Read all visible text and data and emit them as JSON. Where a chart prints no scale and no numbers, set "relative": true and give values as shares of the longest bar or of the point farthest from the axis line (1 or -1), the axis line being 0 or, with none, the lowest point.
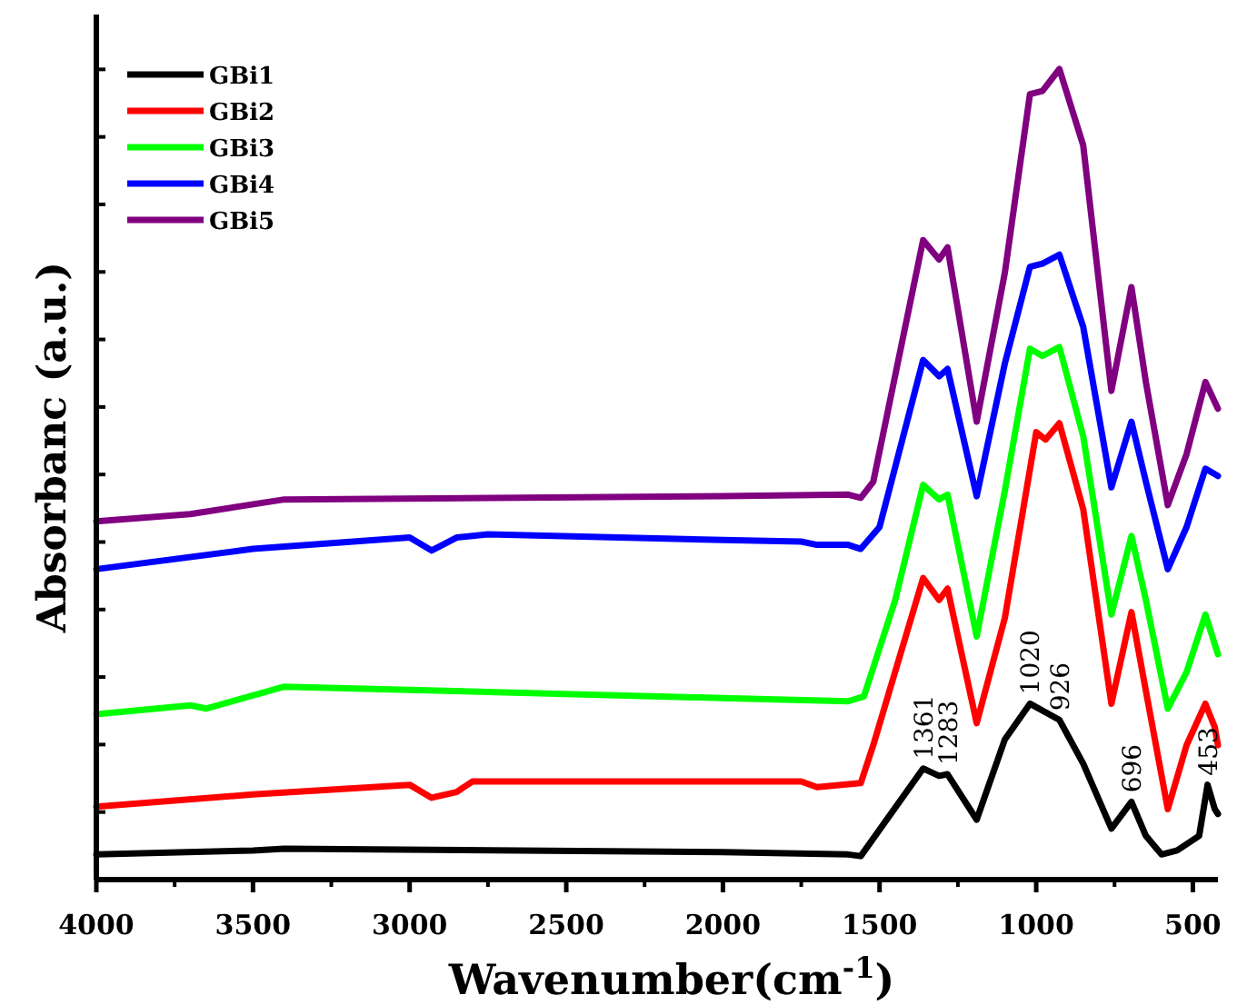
{
  "chart_data": {
    "type": "line",
    "relative": true,
    "xlabel": "Wavenumber(cm$^{-1}$)",
    "ylabel": "Absorbanc (a.u.)",
    "xlim": [
      4000,
      420
    ],
    "xticks": [
      4000,
      3500,
      3000,
      2500,
      2000,
      1500,
      1000,
      500
    ],
    "legend": "top left",
    "line_style": "solid",
    "marker": "none",
    "grid": false,
    "series": [
      {
        "name": "GBi1",
        "color": "#000000",
        "x": [
          4000,
          3500,
          3400,
          2000,
          1600,
          1560,
          1361,
          1310,
          1283,
          1190,
          1100,
          1020,
          926,
          850,
          760,
          696,
          650,
          600,
          550,
          480,
          453,
          430,
          420
        ],
        "values": [
          0.031,
          0.036,
          0.038,
          0.034,
          0.031,
          0.029,
          0.137,
          0.128,
          0.13,
          0.074,
          0.173,
          0.217,
          0.197,
          0.143,
          0.063,
          0.096,
          0.054,
          0.031,
          0.036,
          0.054,
          0.117,
          0.087,
          0.081
        ]
      },
      {
        "name": "GBi2",
        "color": "#ff0000",
        "x": [
          4000,
          3500,
          3000,
          2930,
          2850,
          2800,
          2000,
          1750,
          1700,
          1560,
          1520,
          1361,
          1310,
          1283,
          1190,
          1100,
          1000,
          970,
          926,
          850,
          760,
          696,
          650,
          580,
          520,
          460,
          430,
          420
        ],
        "values": [
          0.09,
          0.105,
          0.117,
          0.101,
          0.108,
          0.121,
          0.121,
          0.121,
          0.114,
          0.119,
          0.166,
          0.372,
          0.345,
          0.359,
          0.193,
          0.323,
          0.552,
          0.543,
          0.563,
          0.457,
          0.217,
          0.33,
          0.233,
          0.087,
          0.166,
          0.217,
          0.188,
          0.166
        ]
      },
      {
        "name": "GBi3",
        "color": "#00ff00",
        "x": [
          4000,
          3700,
          3650,
          3400,
          2000,
          1600,
          1550,
          1450,
          1361,
          1310,
          1283,
          1190,
          1100,
          1020,
          980,
          926,
          850,
          760,
          696,
          650,
          580,
          520,
          460,
          420
        ],
        "values": [
          0.204,
          0.215,
          0.211,
          0.238,
          0.224,
          0.22,
          0.226,
          0.345,
          0.487,
          0.469,
          0.475,
          0.3,
          0.48,
          0.655,
          0.646,
          0.657,
          0.547,
          0.327,
          0.424,
          0.345,
          0.211,
          0.256,
          0.327,
          0.278
        ]
      },
      {
        "name": "GBi4",
        "color": "#0000ff",
        "x": [
          4000,
          3500,
          3000,
          2930,
          2850,
          2750,
          2000,
          1750,
          1700,
          1600,
          1560,
          1500,
          1361,
          1310,
          1283,
          1190,
          1100,
          1020,
          980,
          926,
          850,
          760,
          696,
          650,
          580,
          520,
          460,
          420
        ],
        "values": [
          0.383,
          0.408,
          0.422,
          0.406,
          0.422,
          0.426,
          0.419,
          0.417,
          0.413,
          0.413,
          0.408,
          0.435,
          0.641,
          0.621,
          0.63,
          0.473,
          0.637,
          0.756,
          0.76,
          0.771,
          0.682,
          0.484,
          0.565,
          0.491,
          0.383,
          0.435,
          0.507,
          0.498
        ]
      },
      {
        "name": "GBi5",
        "color": "#800080",
        "x": [
          4000,
          3700,
          3400,
          2000,
          1600,
          1560,
          1520,
          1361,
          1310,
          1283,
          1190,
          1100,
          1020,
          980,
          926,
          850,
          760,
          696,
          650,
          580,
          520,
          460,
          420
        ],
        "values": [
          0.442,
          0.451,
          0.469,
          0.473,
          0.475,
          0.471,
          0.491,
          0.789,
          0.765,
          0.78,
          0.565,
          0.749,
          0.969,
          0.973,
          1,
          0.906,
          0.603,
          0.731,
          0.614,
          0.462,
          0.525,
          0.614,
          0.581
        ]
      }
    ],
    "annotations": [
      {
        "text": "1361",
        "x": 1361,
        "y": 0.137
      },
      {
        "text": "1283",
        "x": 1283,
        "y": 0.13
      },
      {
        "text": "1020",
        "x": 1020,
        "y": 0.217
      },
      {
        "text": "926",
        "x": 926,
        "y": 0.197
      },
      {
        "text": "696",
        "x": 696,
        "y": 0.096
      },
      {
        "text": "453",
        "x": 453,
        "y": 0.117
      }
    ]
  }
}
